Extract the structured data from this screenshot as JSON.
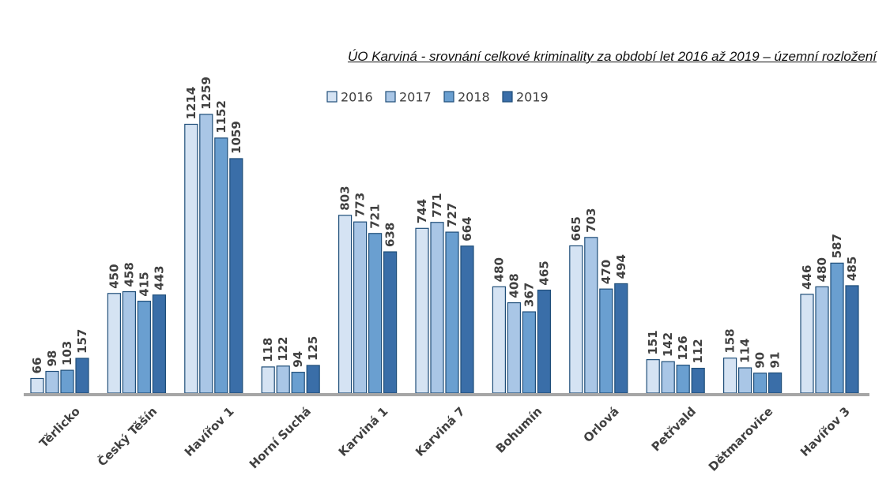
{
  "chart_data": {
    "type": "bar",
    "title": "ÚO Karviná - srovnání celkové kriminality za období let 2016 až 2019 – územní rozložení",
    "categories": [
      "Těrlicko",
      "Český Těšín",
      "Havířov 1",
      "Horní Suchá",
      "Karviná 1",
      "Karviná 7",
      "Bohumín",
      "Orlová",
      "Petřvald",
      "Dětmarovice",
      "Havířov 3"
    ],
    "series": [
      {
        "name": "2016",
        "values": [
          66,
          450,
          1214,
          118,
          803,
          744,
          480,
          665,
          151,
          158,
          446
        ],
        "color": "#d5e3f3"
      },
      {
        "name": "2017",
        "values": [
          98,
          458,
          1259,
          122,
          773,
          771,
          408,
          703,
          142,
          114,
          480
        ],
        "color": "#a9c6e6"
      },
      {
        "name": "2018",
        "values": [
          103,
          415,
          1152,
          94,
          721,
          727,
          367,
          470,
          126,
          90,
          587
        ],
        "color": "#6a9fd0"
      },
      {
        "name": "2019",
        "values": [
          157,
          443,
          1059,
          125,
          638,
          664,
          465,
          494,
          112,
          91,
          485
        ],
        "color": "#3a6ea8"
      }
    ],
    "ylim": [
      0,
      1300
    ],
    "grid": false,
    "legend_position": "top",
    "data_labels": true,
    "bar_outline_color": "#1f4e79",
    "axis_color": "#a6a6a6"
  }
}
